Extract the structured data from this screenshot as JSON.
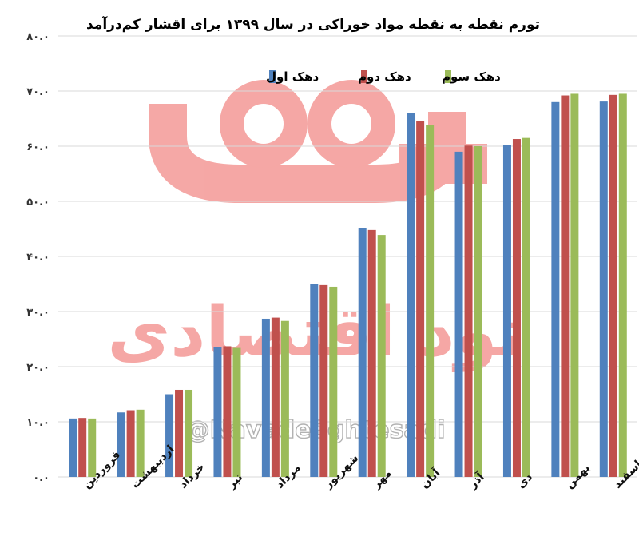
{
  "chart_data": {
    "type": "bar",
    "title": "تورم نقطه به نقطه مواد خوراکی در سال ۱۳۹۹ برای اقشار کم‌درآمد",
    "categories": [
      "فروردین",
      "اردیبهشت",
      "خرداد",
      "تیر",
      "مرداد",
      "شهریور",
      "مهر",
      "آبان",
      "آذر",
      "دی",
      "بهمن",
      "اسفند"
    ],
    "series": [
      {
        "name": "دهک اول",
        "color": "#4f81bd",
        "values": [
          10.6,
          11.7,
          15.0,
          23.5,
          28.7,
          35.0,
          45.2,
          66.0,
          59.0,
          60.2,
          68.0,
          68.1
        ]
      },
      {
        "name": "دهک دوم",
        "color": "#c0504d",
        "values": [
          10.7,
          12.1,
          15.8,
          23.7,
          28.9,
          34.8,
          44.8,
          64.5,
          60.1,
          61.3,
          69.2,
          69.3
        ]
      },
      {
        "name": "دهک سوم",
        "color": "#9bbb59",
        "values": [
          10.6,
          12.2,
          15.8,
          23.4,
          28.3,
          34.5,
          43.9,
          63.8,
          60.0,
          61.5,
          69.5,
          69.5
        ]
      }
    ],
    "yticks": [
      "۰.۰",
      "۱۰.۰",
      "۲۰.۰",
      "۳۰.۰",
      "۴۰.۰",
      "۵۰.۰",
      "۶۰.۰",
      "۷۰.۰",
      "۸۰.۰"
    ],
    "ylim": [
      0,
      80
    ],
    "legend_position": "top-center",
    "grid": true
  },
  "watermark": {
    "text": "نود اقتصادی",
    "handle": "@NavadeEghtesadi",
    "color": "#e8302a"
  }
}
